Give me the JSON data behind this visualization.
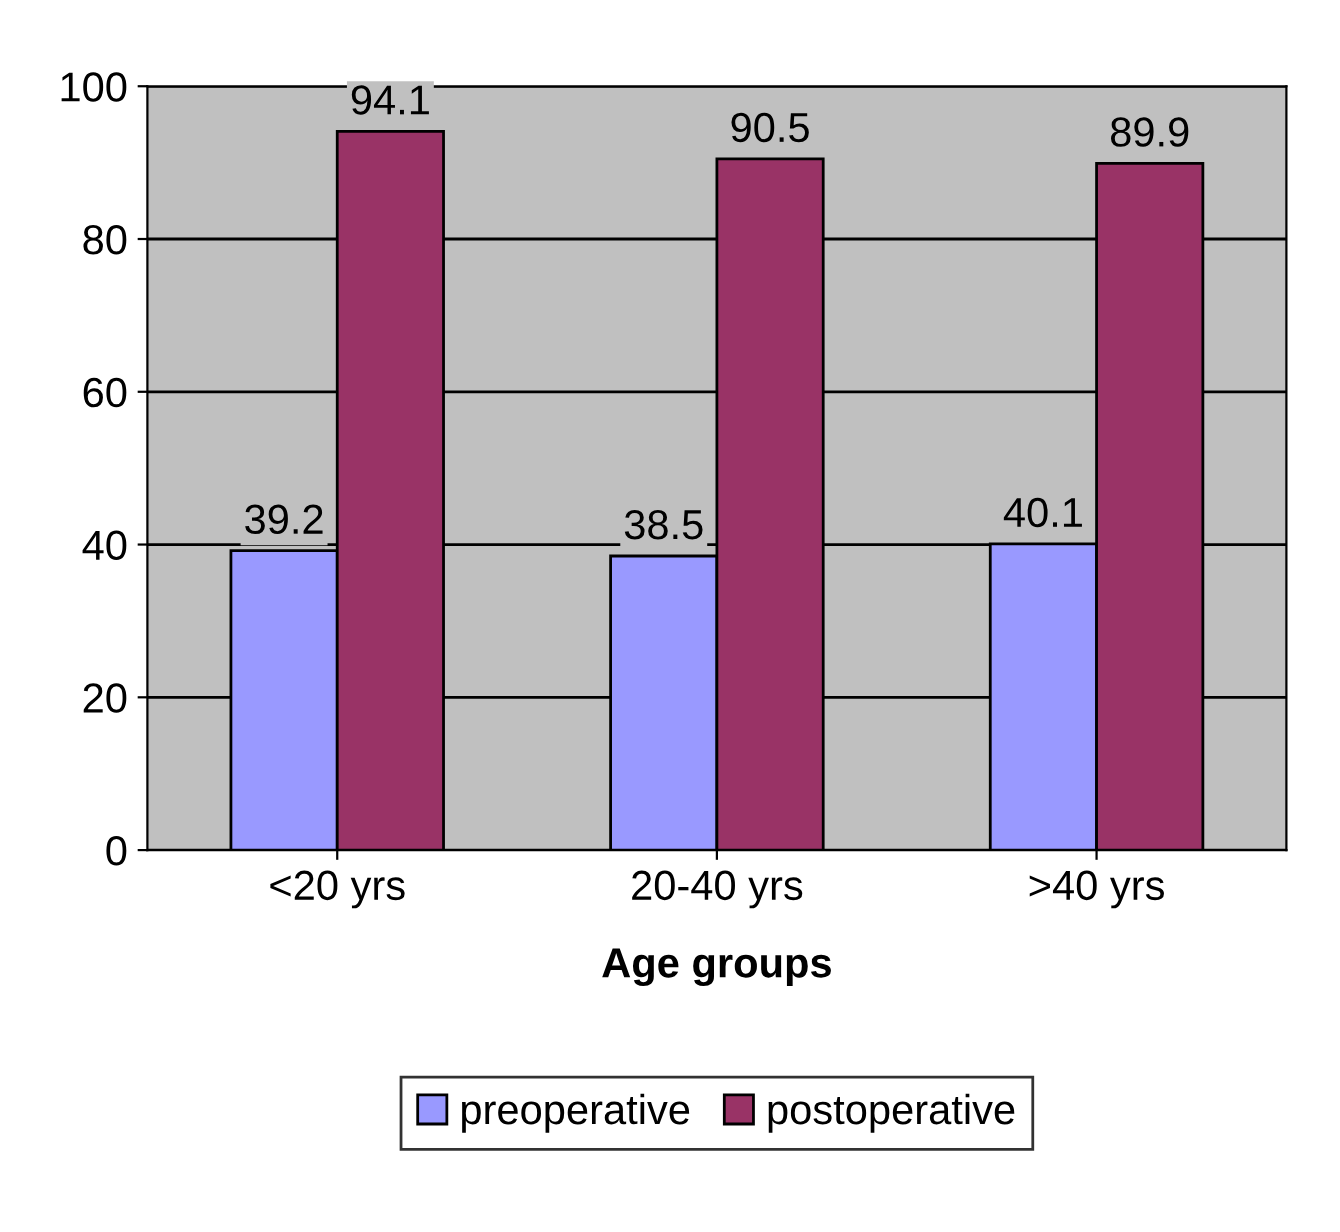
{
  "chart_data": {
    "type": "bar",
    "xlabel": "Age groups",
    "categories": [
      "<20 yrs",
      "20-40 yrs",
      ">40 yrs"
    ],
    "series": [
      {
        "name": "preoperative",
        "color": "#9999ff",
        "values": [
          39.2,
          38.5,
          40.1
        ]
      },
      {
        "name": "postoperative",
        "color": "#993366",
        "values": [
          94.1,
          90.5,
          89.9
        ]
      }
    ],
    "ylim": [
      0,
      100
    ],
    "yticks": [
      0,
      20,
      40,
      60,
      80,
      100
    ],
    "grid": "y",
    "legend": "bottom",
    "data_labels": true
  }
}
